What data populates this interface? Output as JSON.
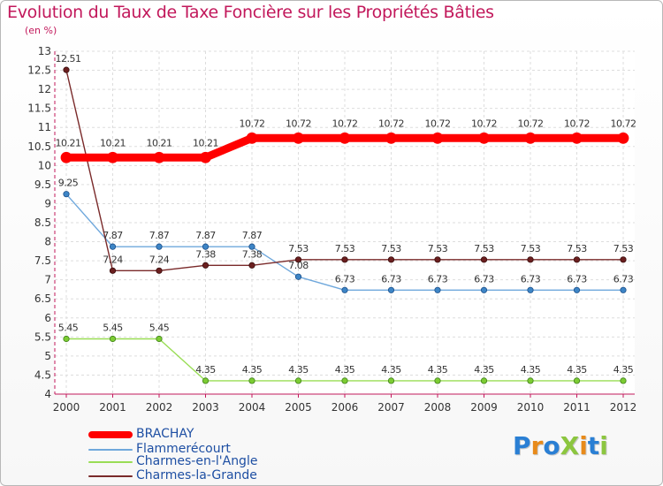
{
  "title": "Evolution du Taux de Taxe Foncière sur les Propriétés Bâties",
  "unit_label": "(en %)",
  "logo": {
    "text": "Proxiti",
    "letters": [
      {
        "ch": "P",
        "color": "#2a7fd4"
      },
      {
        "ch": "r",
        "color": "#e88a1a"
      },
      {
        "ch": "o",
        "color": "#2a7fd4"
      },
      {
        "ch": "X",
        "color": "#8cc63f"
      },
      {
        "ch": "i",
        "color": "#e88a1a"
      },
      {
        "ch": "t",
        "color": "#2a7fd4"
      },
      {
        "ch": "i",
        "color": "#8cc63f"
      }
    ]
  },
  "chart_data": {
    "type": "line",
    "title": "Evolution du Taux de Taxe Foncière sur les Propriétés Bâties",
    "ylabel": "(en %)",
    "xlabel": "",
    "ylim": [
      4,
      13
    ],
    "yticks": [
      "4",
      "4.5",
      "5",
      "5.5",
      "6",
      "6.5",
      "7",
      "7.5",
      "8",
      "8.5",
      "9",
      "9.5",
      "10",
      "10.5",
      "11",
      "11.5",
      "12",
      "12.5",
      "13"
    ],
    "categories": [
      "2000",
      "2001",
      "2002",
      "2003",
      "2004",
      "2005",
      "2006",
      "2007",
      "2008",
      "2009",
      "2010",
      "2011",
      "2012"
    ],
    "grid": true,
    "series": [
      {
        "name": "BRACHAY",
        "color": "#ff0000",
        "values": [
          10.21,
          10.21,
          10.21,
          10.21,
          10.72,
          10.72,
          10.72,
          10.72,
          10.72,
          10.72,
          10.72,
          10.72,
          10.72
        ],
        "labels": [
          "10.21",
          "10.21",
          "10.21",
          "10.21",
          "10.72",
          "10.72",
          "10.72",
          "10.72",
          "10.72",
          "10.72",
          "10.72",
          "10.72",
          "10.72"
        ]
      },
      {
        "name": "Flammerécourt",
        "color": "#6fa8dc",
        "values": [
          9.25,
          7.87,
          7.87,
          7.87,
          7.87,
          7.08,
          6.73,
          6.73,
          6.73,
          6.73,
          6.73,
          6.73,
          6.73
        ],
        "labels": [
          "9.25",
          "7.87",
          "7.87",
          "7.87",
          "7.87",
          "7.08",
          "6.73",
          "6.73",
          "6.73",
          "6.73",
          "6.73",
          "6.73",
          "6.73"
        ]
      },
      {
        "name": "Charmes-en-l'Angle",
        "color": "#99dd55",
        "values": [
          5.45,
          5.45,
          5.45,
          4.35,
          4.35,
          4.35,
          4.35,
          4.35,
          4.35,
          4.35,
          4.35,
          4.35,
          4.35
        ],
        "labels": [
          "5.45",
          "5.45",
          "5.45",
          "4.35",
          "4.35",
          "4.35",
          "4.35",
          "4.35",
          "4.35",
          "4.35",
          "4.35",
          "4.35",
          "4.35"
        ]
      },
      {
        "name": "Charmes-la-Grande",
        "color": "#7a2a2a",
        "values": [
          12.51,
          7.24,
          7.24,
          7.38,
          7.38,
          7.53,
          7.53,
          7.53,
          7.53,
          7.53,
          7.53,
          7.53,
          7.53
        ],
        "labels": [
          "12.51",
          "7.24",
          "7.24",
          "7.38",
          "7.38",
          "7.53",
          "7.53",
          "7.53",
          "7.53",
          "7.53",
          "7.53",
          "7.53",
          "7.53"
        ]
      }
    ],
    "legend": [
      "BRACHAY",
      "Flammerécourt",
      "Charmes-en-l'Angle",
      "Charmes-la-Grande"
    ],
    "legend_position": "bottom-left"
  }
}
